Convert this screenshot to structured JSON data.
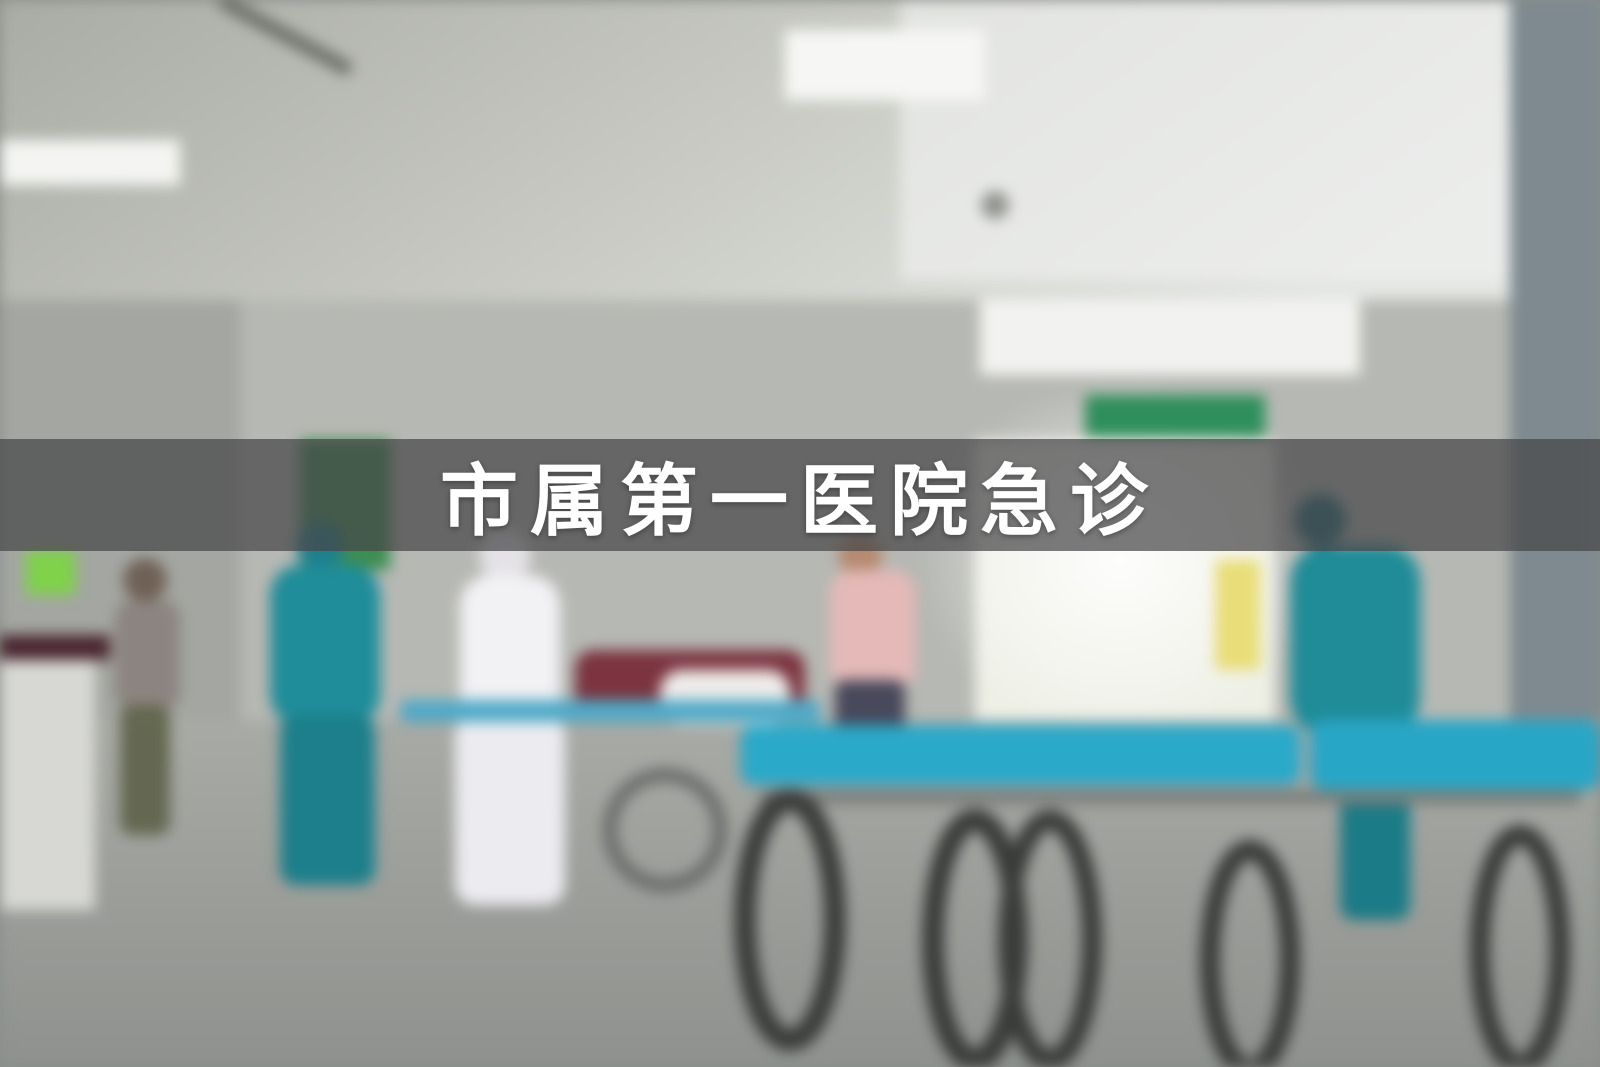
{
  "banner": {
    "title": "市属第一医院急诊"
  },
  "photo": {
    "subject": "hospital-emergency-corridor",
    "blurred": true
  },
  "colors": {
    "banner_overlay": "#464648",
    "title_text": "#ffffff",
    "stretcher_mattress": "#2aa9c9",
    "scrubs": "#1f8d9a"
  }
}
